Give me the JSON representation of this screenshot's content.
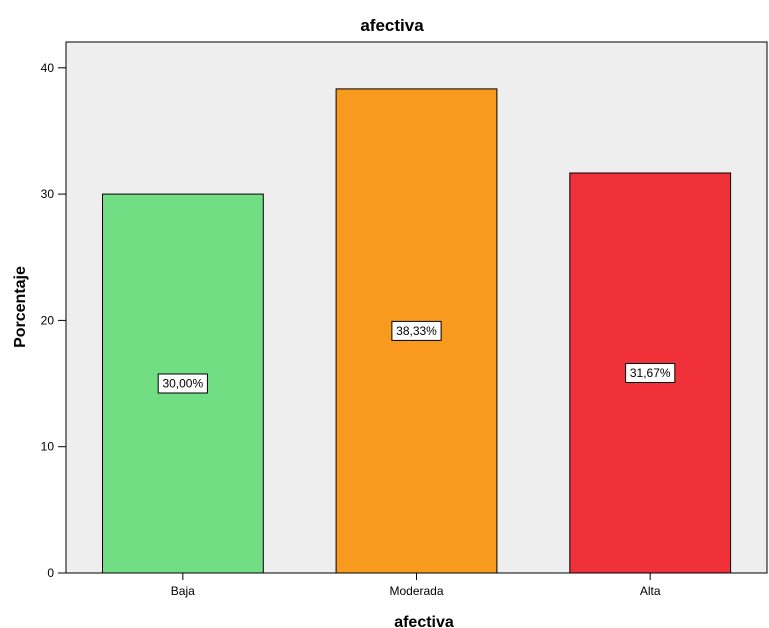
{
  "chart_data": {
    "type": "bar",
    "title": "afectiva",
    "xlabel": "afectiva",
    "ylabel": "Porcentaje",
    "categories": [
      "Baja",
      "Moderada",
      "Alta"
    ],
    "values": [
      30.0,
      38.33,
      31.67
    ],
    "data_labels": [
      "30,00%",
      "38,33%",
      "31,67%"
    ],
    "colors": [
      "#72DE84",
      "#F79A1E",
      "#F0313A"
    ],
    "ylim": [
      0,
      42
    ],
    "yticks": [
      0,
      10,
      20,
      30,
      40
    ],
    "ytick_labels": [
      "0",
      "10",
      "20",
      "30",
      "40"
    ],
    "plot_background": "#EEEEEE",
    "grid": false,
    "legend": "none"
  }
}
